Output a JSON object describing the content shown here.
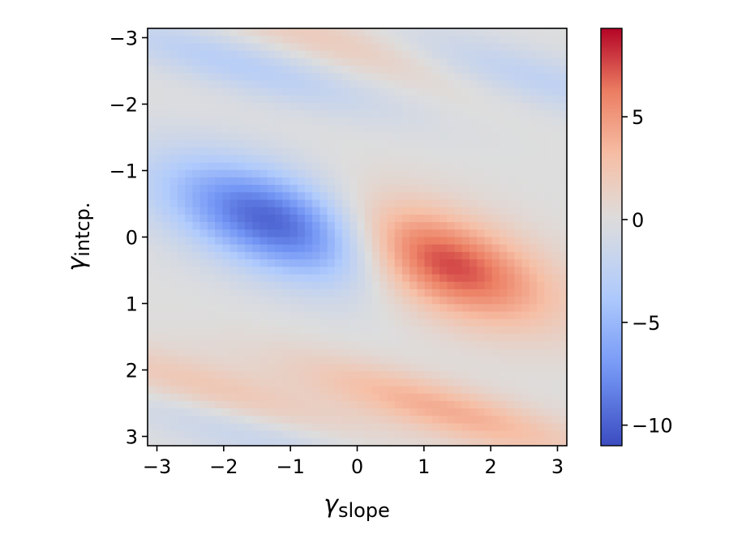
{
  "chart_data": {
    "type": "heatmap",
    "title": "",
    "xlabel": {
      "symbol": "γ",
      "subscript": "slope"
    },
    "ylabel": {
      "symbol": "γ",
      "subscript": "intcp."
    },
    "xlim": [
      -3.14,
      3.14
    ],
    "ylim": [
      -3.14,
      3.14
    ],
    "y_inverted": true,
    "x_ticks": [
      {
        "value": -3,
        "label": "−3"
      },
      {
        "value": -2,
        "label": "−2"
      },
      {
        "value": -1,
        "label": "−1"
      },
      {
        "value": 0,
        "label": "0"
      },
      {
        "value": 1,
        "label": "1"
      },
      {
        "value": 2,
        "label": "2"
      },
      {
        "value": 3,
        "label": "3"
      }
    ],
    "y_ticks": [
      {
        "value": -3,
        "label": "−3"
      },
      {
        "value": -2,
        "label": "−2"
      },
      {
        "value": -1,
        "label": "−1"
      },
      {
        "value": 0,
        "label": "0"
      },
      {
        "value": 1,
        "label": "1"
      },
      {
        "value": 2,
        "label": "2"
      },
      {
        "value": 3,
        "label": "3"
      }
    ],
    "colormap": "coolwarm",
    "colormap_stops": [
      "#3b4cc0",
      "#7396f5",
      "#b0cbfc",
      "#dddddd",
      "#f6bfa6",
      "#ec7f63",
      "#b40426"
    ],
    "colorbar": {
      "vmin": -11,
      "vmax": 9.3,
      "ticks": [
        {
          "value": 5,
          "label": "5"
        },
        {
          "value": 0,
          "label": "0"
        },
        {
          "value": -5,
          "label": "−5"
        },
        {
          "value": -10,
          "label": "−10"
        }
      ]
    },
    "features": [
      {
        "kind": "blue-lobe",
        "x": -1.1,
        "y": -0.2,
        "peak": -11
      },
      {
        "kind": "red-lobe",
        "x": 1.1,
        "y": 0.35,
        "peak": 9
      },
      {
        "kind": "blue-band",
        "x": -1.8,
        "y": -2.6,
        "peak": -3
      },
      {
        "kind": "blue-band",
        "x": 2.6,
        "y": -2.4,
        "peak": -2.5
      },
      {
        "kind": "red-band",
        "x": -0.5,
        "y": -3.0,
        "peak": 2
      },
      {
        "kind": "red-band",
        "x": 1.3,
        "y": 2.6,
        "peak": 4
      },
      {
        "kind": "red-band",
        "x": -2.2,
        "y": 2.3,
        "peak": 2.5
      },
      {
        "kind": "blue-band",
        "x": -1.5,
        "y": 3.0,
        "peak": -2
      }
    ]
  }
}
